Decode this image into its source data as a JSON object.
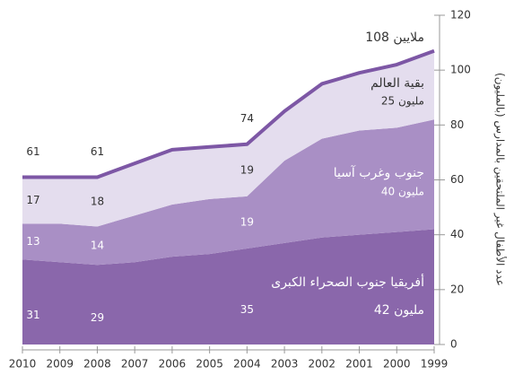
{
  "chart_data": {
    "type": "stacked_area",
    "y_axis_label": "عدد الأطفال غير الملتحقين بالمدارس (بالمليون)",
    "categories": [
      "2010",
      "2009",
      "2008",
      "2007",
      "2006",
      "2005",
      "2004",
      "2003",
      "2002",
      "2001",
      "2000",
      "1999"
    ],
    "series": [
      {
        "name": "أفريقيا جنوب الصحراء الكبرى",
        "total_label": "42 مليون",
        "color": "#8a67ab",
        "values": [
          31,
          30,
          29,
          30,
          32,
          33,
          35,
          37,
          39,
          40,
          41,
          42
        ]
      },
      {
        "name": "جنوب وغرب آسيا",
        "total_label": "40 مليون",
        "color": "#a98fc5",
        "values": [
          13,
          14,
          14,
          17,
          19,
          20,
          19,
          30,
          36,
          38,
          38,
          40
        ]
      },
      {
        "name": "بقية العالم",
        "total_label": "25 مليون",
        "color": "#e4ddee",
        "values": [
          17,
          17,
          18,
          19,
          20,
          19,
          19,
          18,
          20,
          21,
          23,
          25
        ]
      }
    ],
    "total_line_color": "#7d57a5",
    "total_labels": [
      {
        "year": "2010",
        "value": 61
      },
      {
        "year": "2008",
        "value": 61
      },
      {
        "year": "2004",
        "value": 74
      }
    ],
    "total_annotation": "108 ملايين",
    "ylim": [
      0,
      120
    ],
    "yticks": [
      0,
      20,
      40,
      60,
      80,
      100,
      120
    ]
  }
}
